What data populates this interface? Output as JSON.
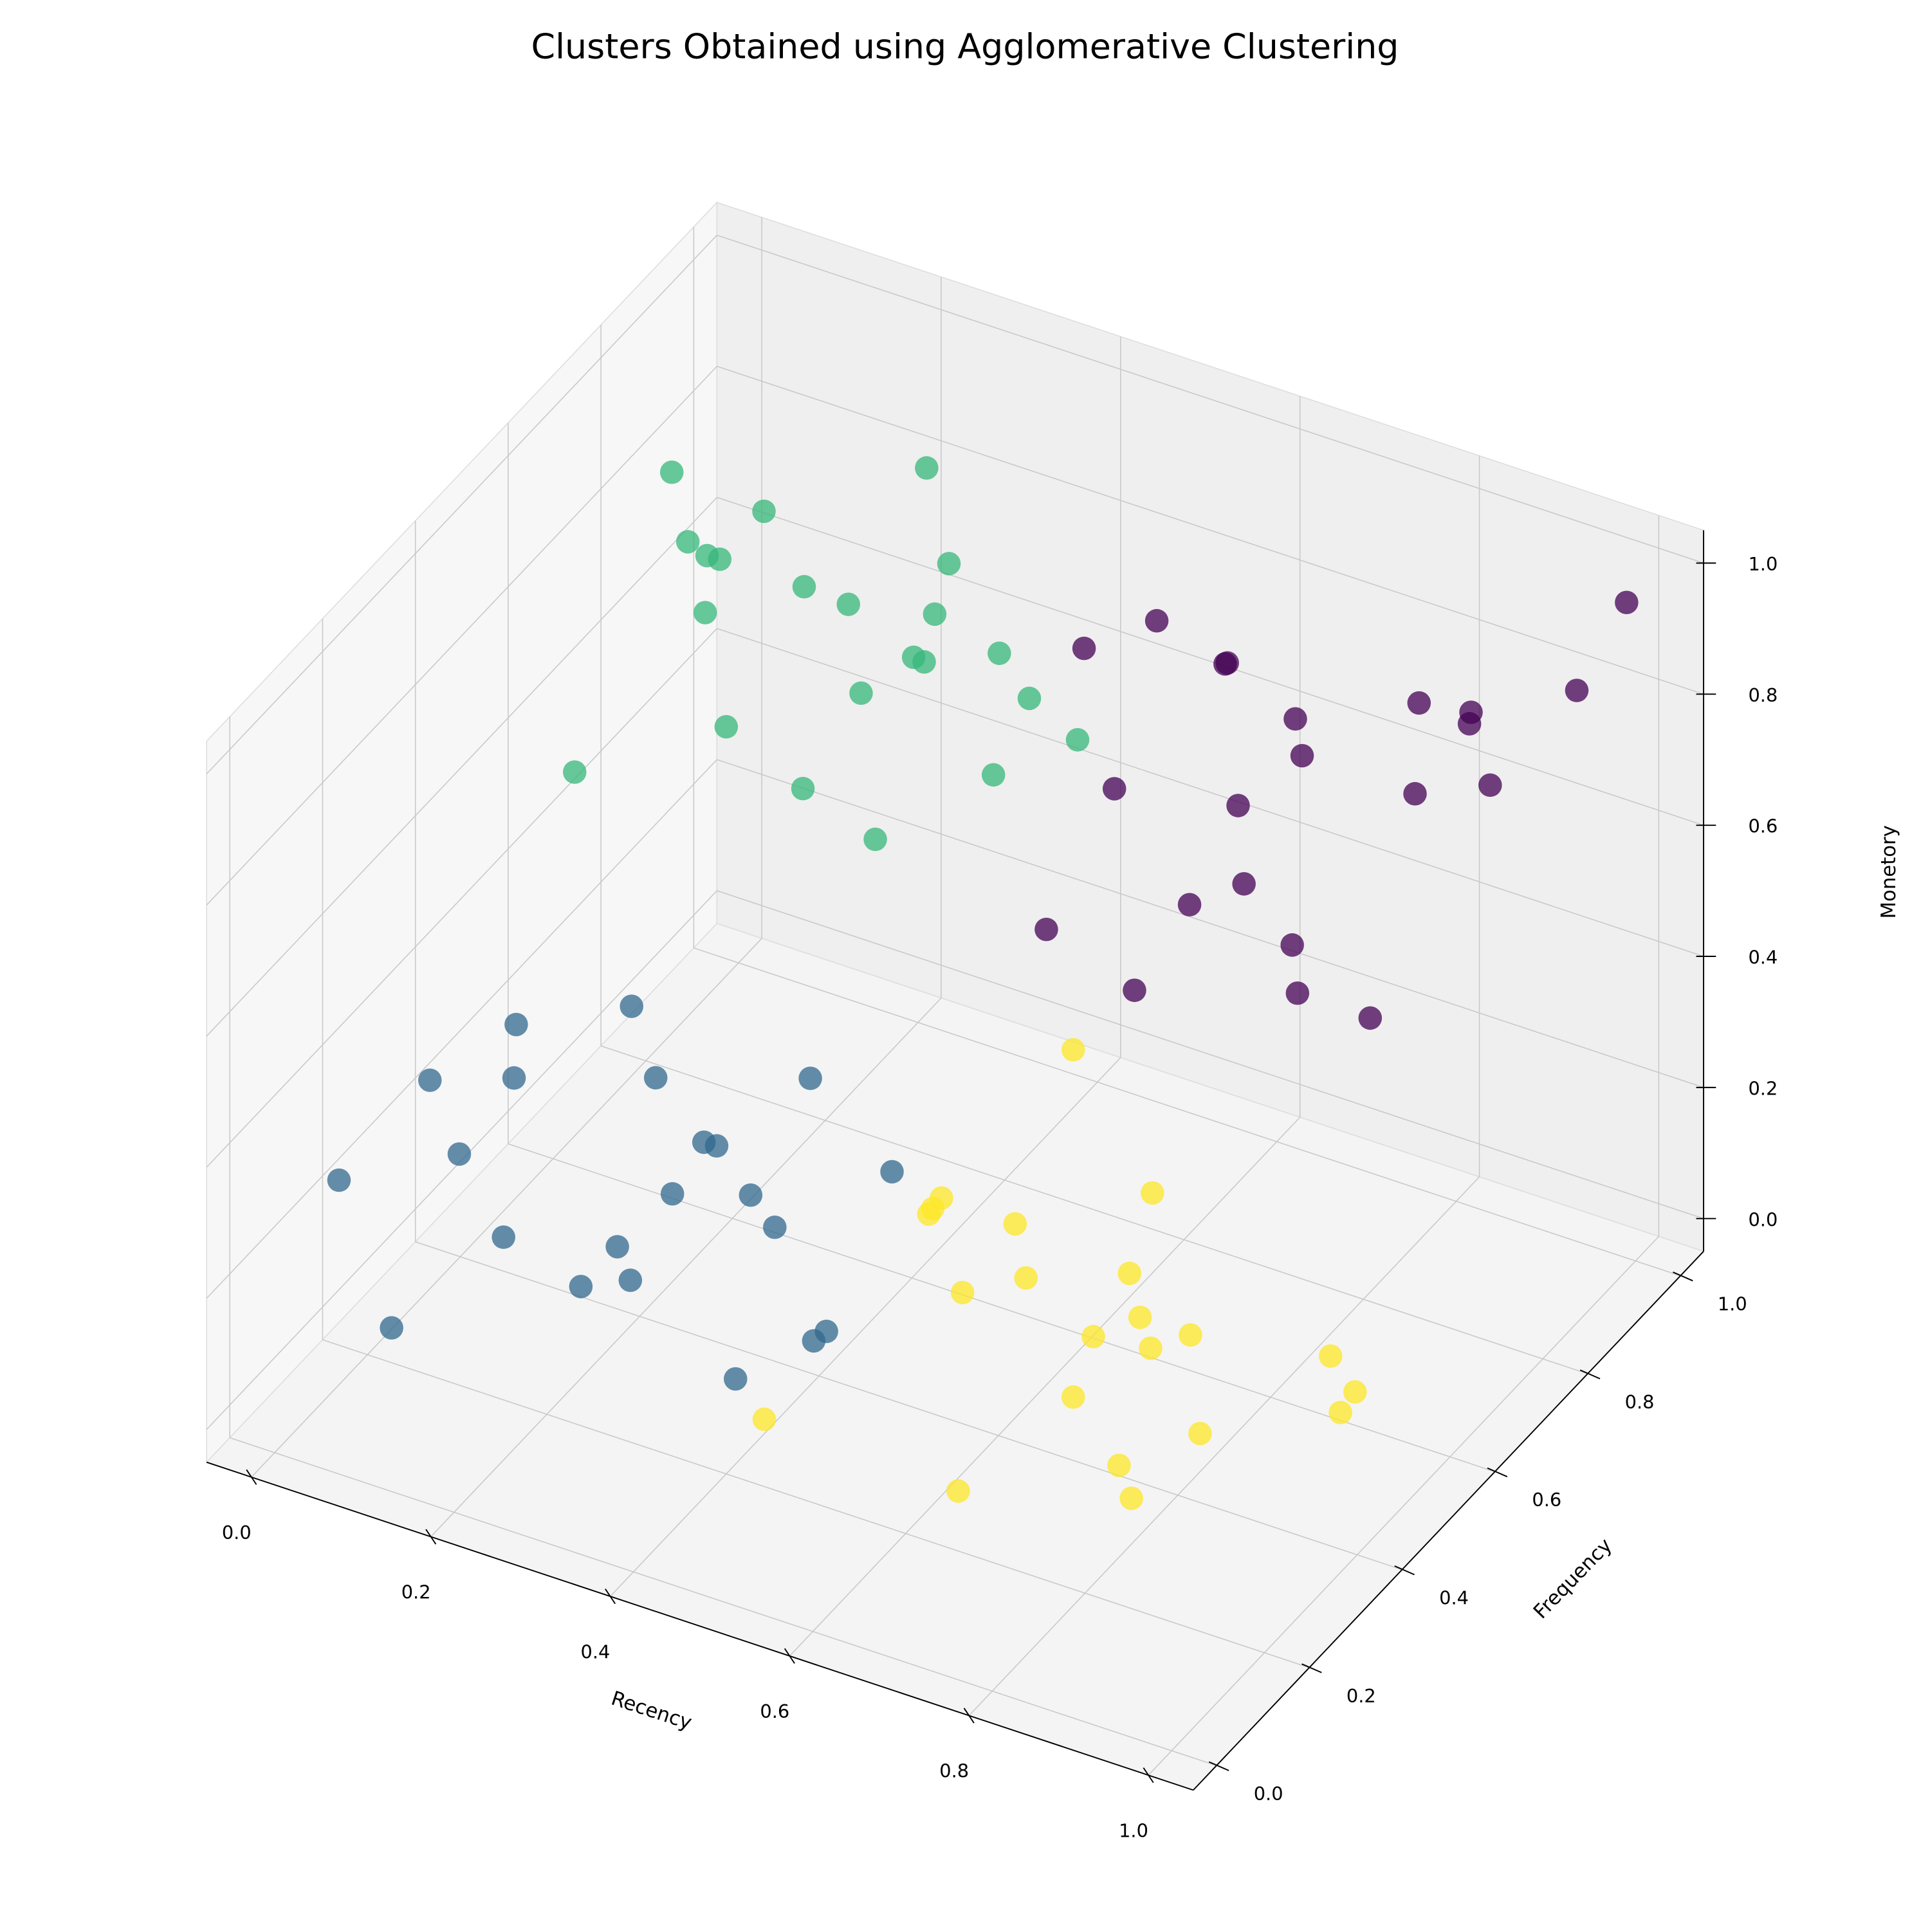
{
  "chart_data": {
    "type": "scatter3d",
    "title": "Clusters Obtained using Agglomerative Clustering",
    "x_label": "Recency",
    "y_label": "Frequency",
    "z_label": "Monetory",
    "xlim": [
      -0.05,
      1.05
    ],
    "ylim": [
      -0.05,
      1.05
    ],
    "zlim": [
      -0.05,
      1.05
    ],
    "xticks": [
      {
        "value": 0,
        "label": "0.0"
      },
      0.2,
      0.4,
      0.6,
      0.8,
      {
        "value": 1,
        "label": "1.0"
      }
    ],
    "yticks": [
      {
        "value": 0,
        "label": "0.0"
      },
      0.2,
      0.4,
      0.6,
      0.8,
      {
        "value": 1,
        "label": "1.0"
      }
    ],
    "zticks": [
      {
        "value": 0,
        "label": "0.0"
      },
      0.2,
      0.4,
      0.6,
      0.8,
      {
        "value": 1,
        "label": "1.0"
      }
    ],
    "grid": true,
    "series": [
      {
        "color": "#440154",
        "x": [
          0.55,
          0.62,
          0.7,
          0.78,
          0.85,
          0.92,
          0.6,
          0.68,
          0.75,
          0.83,
          0.9,
          0.97,
          0.58,
          0.72,
          0.8,
          0.88,
          0.65,
          0.95,
          0.53,
          0.76,
          0.99,
          0.7
        ],
        "y": [
          0.6,
          0.85,
          0.7,
          0.95,
          0.55,
          0.8,
          0.65,
          0.9,
          0.75,
          0.6,
          0.88,
          0.7,
          0.78,
          0.58,
          0.92,
          0.66,
          0.82,
          0.97,
          0.72,
          0.62,
          1.0,
          0.5
        ],
        "z": [
          0.55,
          0.8,
          0.95,
          0.6,
          0.7,
          0.9,
          0.75,
          0.65,
          0.85,
          0.58,
          0.72,
          0.98,
          0.9,
          0.68,
          0.77,
          0.52,
          0.62,
          0.82,
          0.88,
          0.7,
          0.95,
          0.6
        ]
      },
      {
        "color": "#35b779",
        "x": [
          0.05,
          0.12,
          0.2,
          0.28,
          0.35,
          0.42,
          0.08,
          0.16,
          0.24,
          0.32,
          0.4,
          0.1,
          0.18,
          0.26,
          0.34,
          0.44,
          0.14,
          0.3,
          0.22,
          0.38,
          0.06,
          0.46
        ],
        "y": [
          0.55,
          0.7,
          0.85,
          0.6,
          0.95,
          0.75,
          0.9,
          0.65,
          0.8,
          0.52,
          0.68,
          0.78,
          0.58,
          0.92,
          0.72,
          0.88,
          0.62,
          0.82,
          0.98,
          0.56,
          0.74,
          0.66
        ],
        "z": [
          0.6,
          0.85,
          0.7,
          0.95,
          0.55,
          0.8,
          0.75,
          0.9,
          0.62,
          0.72,
          0.98,
          0.52,
          0.88,
          0.66,
          0.78,
          0.58,
          0.94,
          0.68,
          0.82,
          0.64,
          0.92,
          0.7
        ]
      },
      {
        "color": "#31688e",
        "x": [
          0.02,
          0.1,
          0.18,
          0.26,
          0.34,
          0.42,
          0.48,
          0.06,
          0.14,
          0.22,
          0.3,
          0.38,
          0.46,
          0.08,
          0.2,
          0.32,
          0.44,
          0.12,
          0.28,
          0.4,
          0.16,
          0.36
        ],
        "y": [
          0.1,
          0.3,
          0.05,
          0.45,
          0.2,
          0.35,
          0.15,
          0.4,
          0.25,
          0.5,
          0.08,
          0.42,
          0.3,
          0.18,
          0.38,
          0.12,
          0.48,
          0.02,
          0.28,
          0.22,
          0.46,
          0.33
        ],
        "z": [
          0.3,
          0.1,
          0.45,
          0.2,
          0.35,
          0.05,
          0.4,
          0.25,
          0.48,
          0.15,
          0.28,
          0.38,
          0.12,
          0.42,
          0.02,
          0.32,
          0.22,
          0.18,
          0.44,
          0.08,
          0.36,
          0.26
        ]
      },
      {
        "color": "#fde725",
        "x": [
          0.52,
          0.6,
          0.68,
          0.76,
          0.84,
          0.92,
          0.98,
          0.56,
          0.64,
          0.72,
          0.8,
          0.88,
          0.96,
          0.58,
          0.7,
          0.82,
          0.94,
          0.62,
          0.78,
          0.9,
          0.66,
          0.86
        ],
        "y": [
          0.05,
          0.25,
          0.45,
          0.15,
          0.35,
          0.55,
          0.1,
          0.4,
          0.2,
          0.5,
          0.3,
          0.02,
          0.42,
          0.6,
          0.12,
          0.28,
          0.48,
          0.22,
          0.38,
          0.08,
          0.32,
          0.18
        ],
        "z": [
          0.2,
          0.4,
          0.1,
          0.45,
          0.25,
          0.05,
          0.35,
          0.15,
          0.48,
          0.3,
          0.02,
          0.42,
          0.22,
          0.38,
          0.12,
          0.32,
          0.08,
          0.44,
          0.18,
          0.28,
          0.36,
          0.48
        ]
      }
    ]
  }
}
